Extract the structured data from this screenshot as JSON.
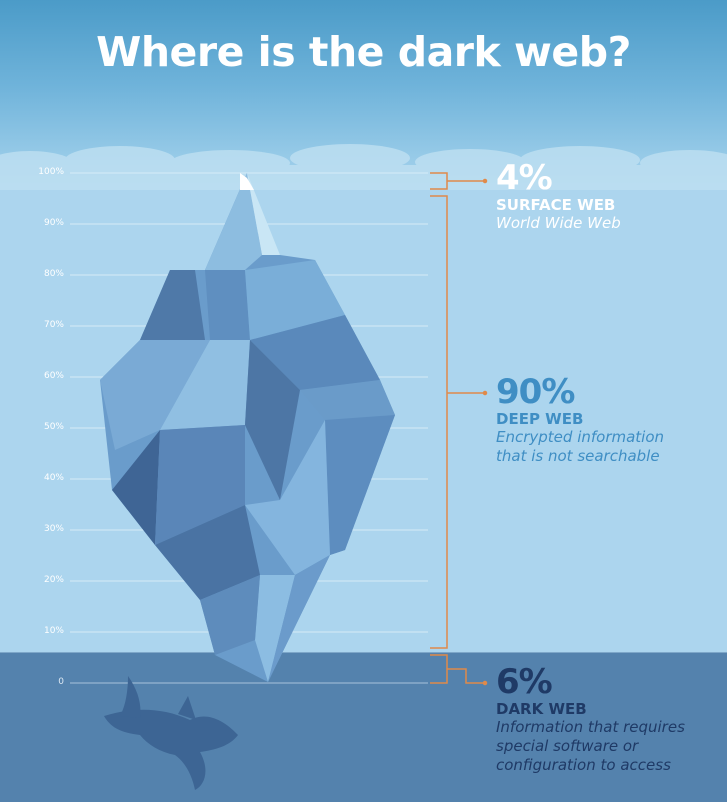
{
  "title": "Where is the dark web?",
  "axis_ticks": [
    "100%",
    "90%",
    "80%",
    "70%",
    "60%",
    "50%",
    "40%",
    "30%",
    "20%",
    "10%",
    "0"
  ],
  "colors": {
    "sky": "#4b9bc8",
    "water": "#acd5ee",
    "deep_water": "#5482ad",
    "bracket": "#e08a4a",
    "deep_label": "#3f8ec4",
    "dark_label": "#1f3a66"
  },
  "layers": [
    {
      "percent": "4%",
      "name": "SURFACE WEB",
      "description": "World Wide Web"
    },
    {
      "percent": "90%",
      "name": "DEEP WEB",
      "description_lines": [
        "Encrypted information",
        "that is not searchable"
      ]
    },
    {
      "percent": "6%",
      "name": "DARK WEB",
      "description_lines": [
        "Information that requires",
        "special software or",
        "configuration to access"
      ]
    }
  ],
  "icons": {
    "iceberg": "iceberg-illustration",
    "shark": "shark-illustration"
  }
}
